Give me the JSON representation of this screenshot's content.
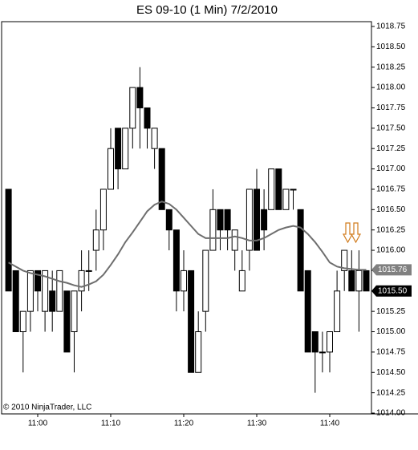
{
  "chart_data": {
    "type": "candlestick",
    "title": "ES 09-10 (1 Min)  7/2/2010",
    "copyright": "© 2010 NinjaTrader, LLC",
    "categories": [
      "10:56",
      "10:57",
      "10:58",
      "10:59",
      "11:00",
      "11:01",
      "11:02",
      "11:03",
      "11:04",
      "11:05",
      "11:06",
      "11:07",
      "11:08",
      "11:09",
      "11:10",
      "11:11",
      "11:12",
      "11:13",
      "11:14",
      "11:15",
      "11:16",
      "11:17",
      "11:18",
      "11:19",
      "11:20",
      "11:21",
      "11:22",
      "11:23",
      "11:24",
      "11:25",
      "11:26",
      "11:27",
      "11:28",
      "11:29",
      "11:30",
      "11:31",
      "11:32",
      "11:33",
      "11:34",
      "11:35",
      "11:36",
      "11:37",
      "11:38",
      "11:39",
      "11:40",
      "11:41",
      "11:42",
      "11:43",
      "11:44",
      "11:45"
    ],
    "xtick_indices": [
      4,
      14,
      24,
      34,
      44
    ],
    "candles": {
      "up_color": "#ffffff",
      "down_color": "#000000",
      "open": [
        1016.75,
        1015.75,
        1015.0,
        1015.25,
        1015.75,
        1015.25,
        1015.5,
        1015.25,
        1015.5,
        1015.0,
        1015.5,
        1015.75,
        1016.0,
        1016.25,
        1016.75,
        1017.5,
        1017.0,
        1017.5,
        1018.0,
        1017.75,
        1017.25,
        1017.25,
        1016.5,
        1016.25,
        1015.5,
        1015.75,
        1014.5,
        1015.25,
        1016.0,
        1016.5,
        1016.5,
        1016.0,
        1015.5,
        1016.0,
        1016.75,
        1016.5,
        1016.5,
        1017.0,
        1016.5,
        1016.75,
        1016.5,
        1015.75,
        1015.0,
        1014.75,
        1014.75,
        1015.0,
        1015.75,
        1015.75,
        1015.5,
        1015.75
      ],
      "high": [
        1016.75,
        1015.75,
        1015.25,
        1015.75,
        1015.75,
        1015.75,
        1015.75,
        1015.75,
        1015.5,
        1015.5,
        1016.0,
        1016.0,
        1016.5,
        1016.75,
        1017.5,
        1017.5,
        1017.5,
        1018.0,
        1018.25,
        1017.75,
        1017.5,
        1017.25,
        1016.5,
        1016.25,
        1016.0,
        1015.75,
        1015.25,
        1016.0,
        1016.75,
        1016.5,
        1016.5,
        1016.25,
        1016.0,
        1016.75,
        1017.0,
        1016.75,
        1017.0,
        1017.0,
        1016.75,
        1016.75,
        1016.5,
        1015.75,
        1015.0,
        1015.0,
        1015.0,
        1015.75,
        1016.0,
        1016.0,
        1016.0,
        1015.75
      ],
      "low": [
        1015.5,
        1015.0,
        1014.5,
        1015.0,
        1015.25,
        1015.0,
        1015.0,
        1015.25,
        1014.75,
        1014.5,
        1015.25,
        1015.5,
        1015.75,
        1016.0,
        1016.75,
        1016.75,
        1017.0,
        1017.25,
        1017.25,
        1017.25,
        1017.0,
        1016.5,
        1016.0,
        1015.25,
        1015.25,
        1014.5,
        1014.5,
        1015.0,
        1016.0,
        1016.0,
        1016.0,
        1015.75,
        1015.5,
        1015.75,
        1016.0,
        1016.0,
        1016.5,
        1016.5,
        1016.5,
        1016.5,
        1015.5,
        1014.75,
        1014.25,
        1014.5,
        1014.5,
        1015.0,
        1015.5,
        1015.5,
        1015.0,
        1015.5
      ],
      "close": [
        1015.5,
        1015.0,
        1015.25,
        1015.75,
        1015.5,
        1015.75,
        1015.25,
        1015.75,
        1014.75,
        1015.5,
        1015.75,
        1015.75,
        1016.25,
        1016.75,
        1017.25,
        1017.0,
        1017.5,
        1018.0,
        1017.75,
        1017.5,
        1017.5,
        1016.5,
        1016.25,
        1015.5,
        1015.75,
        1014.5,
        1015.0,
        1016.0,
        1016.5,
        1016.25,
        1016.25,
        1016.25,
        1015.75,
        1016.75,
        1016.0,
        1016.25,
        1017.0,
        1016.5,
        1016.75,
        1016.75,
        1015.5,
        1014.75,
        1014.75,
        1014.75,
        1015.0,
        1015.5,
        1016.0,
        1015.5,
        1015.75,
        1015.5
      ]
    },
    "moving_average": {
      "color": "#6e6e6e",
      "values": [
        1015.85,
        1015.8,
        1015.75,
        1015.72,
        1015.7,
        1015.68,
        1015.65,
        1015.62,
        1015.6,
        1015.57,
        1015.55,
        1015.58,
        1015.62,
        1015.7,
        1015.82,
        1015.95,
        1016.1,
        1016.22,
        1016.35,
        1016.48,
        1016.56,
        1016.6,
        1016.57,
        1016.5,
        1016.4,
        1016.3,
        1016.2,
        1016.15,
        1016.15,
        1016.15,
        1016.15,
        1016.17,
        1016.15,
        1016.12,
        1016.12,
        1016.15,
        1016.2,
        1016.25,
        1016.28,
        1016.3,
        1016.28,
        1016.2,
        1016.1,
        1015.98,
        1015.85,
        1015.8,
        1015.78,
        1015.77,
        1015.76,
        1015.76
      ]
    },
    "price_markers": [
      {
        "value": 1015.76,
        "label": "1015.76",
        "color": "#808080"
      },
      {
        "value": 1015.5,
        "label": "1015.50",
        "color": "#000000"
      }
    ],
    "ylim": [
      1014.0,
      1018.75
    ],
    "yticks": [
      {
        "value": 1014.0,
        "label": "1014.00"
      },
      {
        "value": 1014.25,
        "label": "1014.25"
      },
      {
        "value": 1014.5,
        "label": "1014.50"
      },
      {
        "value": 1014.75,
        "label": "1014.75"
      },
      {
        "value": 1015.0,
        "label": "1015.00"
      },
      {
        "value": 1015.25,
        "label": "1015.25"
      },
      {
        "value": 1015.5,
        "label": "1015.50"
      },
      {
        "value": 1015.75,
        "label": "1015.75"
      },
      {
        "value": 1016.0,
        "label": "1016.00"
      },
      {
        "value": 1016.25,
        "label": "1016.25"
      },
      {
        "value": 1016.5,
        "label": "1016.50"
      },
      {
        "value": 1016.75,
        "label": "1016.75"
      },
      {
        "value": 1017.0,
        "label": "1017.00"
      },
      {
        "value": 1017.25,
        "label": "1017.25"
      },
      {
        "value": 1017.5,
        "label": "1017.50"
      },
      {
        "value": 1017.75,
        "label": "1017.75"
      },
      {
        "value": 1018.0,
        "label": "1018.00"
      },
      {
        "value": 1018.25,
        "label": "1018.25"
      },
      {
        "value": 1018.5,
        "label": "1018.50"
      },
      {
        "value": 1018.75,
        "label": "1018.75"
      }
    ]
  }
}
